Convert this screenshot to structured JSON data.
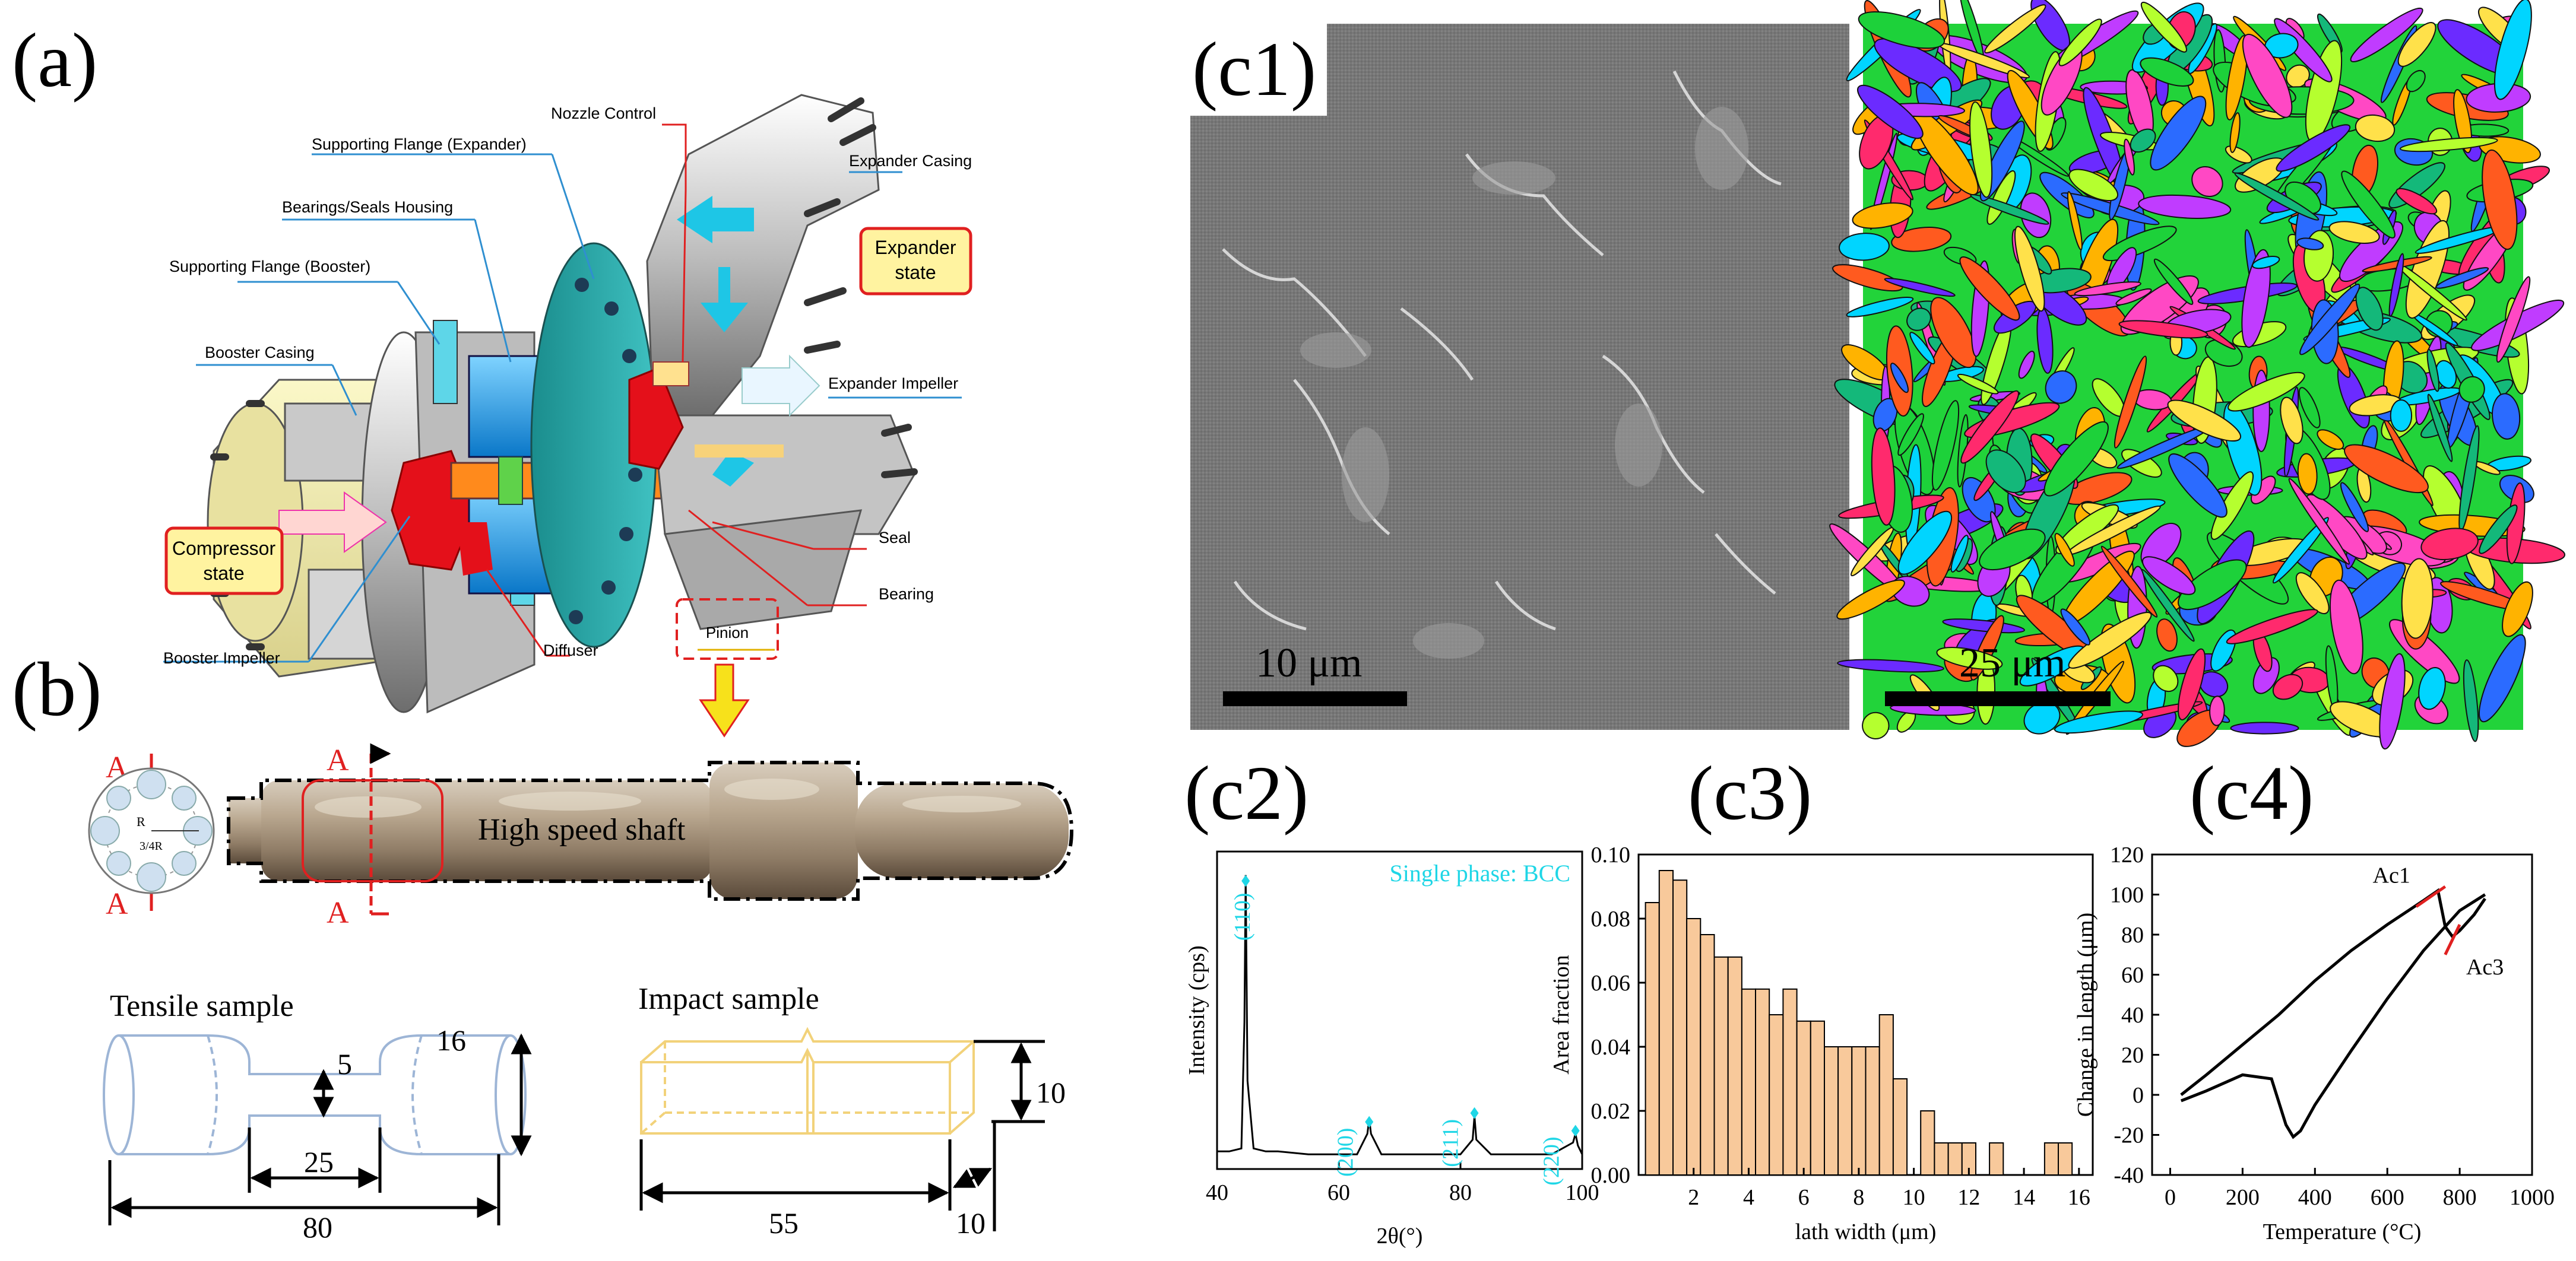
{
  "panel_labels": {
    "a": "(a)",
    "b": "(b)",
    "c1": "(c1)",
    "c2": "(c2)",
    "c3": "(c3)",
    "c4": "(c4)"
  },
  "assembly": {
    "labels": {
      "nozzle_control": "Nozzle Control",
      "supporting_flange_expander": "Supporting Flange (Expander)",
      "expander_casing": "Expander Casing",
      "bearings_seals_housing": "Bearings/Seals Housing",
      "supporting_flange_booster": "Supporting Flange (Booster)",
      "expander_state": "Expander\nstate",
      "expander_state_l1": "Expander",
      "expander_state_l2": "state",
      "booster_casing": "Booster Casing",
      "expander_impeller": "Expander Impeller",
      "compressor_state_l1": "Compressor",
      "compressor_state_l2": "state",
      "seal": "Seal",
      "bearing": "Bearing",
      "booster_impeller": "Booster Impeller",
      "diffuser": "Diffuser",
      "pinion": "Pinion"
    },
    "colors": {
      "leader_blue": "#2f8fd0",
      "leader_red": "#d0202a",
      "callout_fill": "#fff3a0",
      "callout_border": "#e02020",
      "arrow_yellow": "#f7e11b"
    }
  },
  "shaft": {
    "title": "High speed shaft",
    "section_mark": "A",
    "section_R": "R",
    "section_34R": "3/4R"
  },
  "tensile": {
    "title": "Tensile sample",
    "dim_diameter": "5",
    "dim_shoulder": "16",
    "dim_gauge": "25",
    "dim_total": "80"
  },
  "impact": {
    "title": "Impact sample",
    "dim_height": "10",
    "dim_length": "55",
    "dim_width": "10"
  },
  "micrographs": {
    "sem_scale": "10 μm",
    "ebsd_scale": "25 μm"
  },
  "chart_data": [
    {
      "id": "c2",
      "type": "line",
      "xlabel": "2θ(°)",
      "ylabel": "Intensity (cps)",
      "xlim": [
        40,
        100
      ],
      "xticks": [
        40,
        60,
        80,
        100
      ],
      "annotation": "Single phase: BCC",
      "peaks": [
        {
          "label": "(110)",
          "x": 44.7
        },
        {
          "label": "(200)",
          "x": 65.0
        },
        {
          "label": "(211)",
          "x": 82.3
        },
        {
          "label": "(220)",
          "x": 98.9
        }
      ],
      "series": [
        {
          "x": [
            40,
            42,
            44,
            44.5,
            44.7,
            45,
            46,
            48,
            50,
            55,
            60,
            63,
            64.7,
            65,
            65.3,
            67,
            70,
            75,
            80,
            82,
            82.3,
            82.6,
            85,
            90,
            95,
            98.5,
            98.9,
            99.3,
            100
          ],
          "y": [
            0.06,
            0.06,
            0.07,
            0.5,
            1.0,
            0.3,
            0.07,
            0.06,
            0.06,
            0.05,
            0.05,
            0.05,
            0.12,
            0.17,
            0.12,
            0.05,
            0.05,
            0.05,
            0.05,
            0.1,
            0.18,
            0.1,
            0.05,
            0.05,
            0.05,
            0.09,
            0.12,
            0.08,
            0.05
          ]
        }
      ]
    },
    {
      "id": "c3",
      "type": "bar",
      "xlabel": "lath width (μm)",
      "ylabel": "Area fraction",
      "xlim": [
        0,
        16.5
      ],
      "ylim": [
        0,
        0.1
      ],
      "xticks": [
        2,
        4,
        6,
        8,
        10,
        12,
        14,
        16
      ],
      "yticks": [
        "0.00",
        "0.02",
        "0.04",
        "0.06",
        "0.08",
        "0.10"
      ],
      "bar_width": 0.5,
      "x": [
        0.5,
        1,
        1.5,
        2,
        2.5,
        3,
        3.5,
        4,
        4.5,
        5,
        5.5,
        6,
        6.5,
        7,
        7.5,
        8,
        8.5,
        9,
        9.5,
        10,
        10.5,
        11,
        11.5,
        12,
        12.5,
        13,
        13.5,
        14,
        14.5,
        15,
        15.5,
        16
      ],
      "values": [
        0.085,
        0.095,
        0.092,
        0.08,
        0.075,
        0.068,
        0.068,
        0.058,
        0.058,
        0.05,
        0.058,
        0.048,
        0.048,
        0.04,
        0.04,
        0.04,
        0.04,
        0.05,
        0.03,
        0.0,
        0.02,
        0.01,
        0.01,
        0.01,
        0.0,
        0.01,
        0.0,
        0.0,
        0.0,
        0.01,
        0.01,
        0.0
      ],
      "bar_color": "#f8c99b"
    },
    {
      "id": "c4",
      "type": "line",
      "xlabel": "Temperature (°C)",
      "ylabel": "Change in length (μm)",
      "xlim": [
        -50,
        1000
      ],
      "ylim": [
        -40,
        120
      ],
      "xticks": [
        0,
        200,
        400,
        600,
        800,
        1000
      ],
      "yticks": [
        -40,
        -20,
        0,
        20,
        40,
        60,
        80,
        100,
        120
      ],
      "annotations": [
        {
          "label": "Ac1",
          "x": 740,
          "y": 103
        },
        {
          "label": "Ac3",
          "x": 785,
          "y": 72
        }
      ],
      "series": [
        {
          "x": [
            30,
            100,
            200,
            300,
            400,
            500,
            600,
            700,
            740,
            760,
            780,
            800,
            840,
            870
          ],
          "y": [
            0,
            10,
            25,
            40,
            57,
            72,
            85,
            97,
            102,
            84,
            79,
            82,
            90,
            98
          ]
        },
        {
          "x": [
            30,
            100,
            200,
            280,
            320,
            340,
            360,
            400,
            500,
            600,
            700,
            800,
            870
          ],
          "y": [
            -3,
            2,
            10,
            8,
            -15,
            -21,
            -18,
            -5,
            22,
            48,
            72,
            92,
            100
          ]
        }
      ]
    }
  ]
}
